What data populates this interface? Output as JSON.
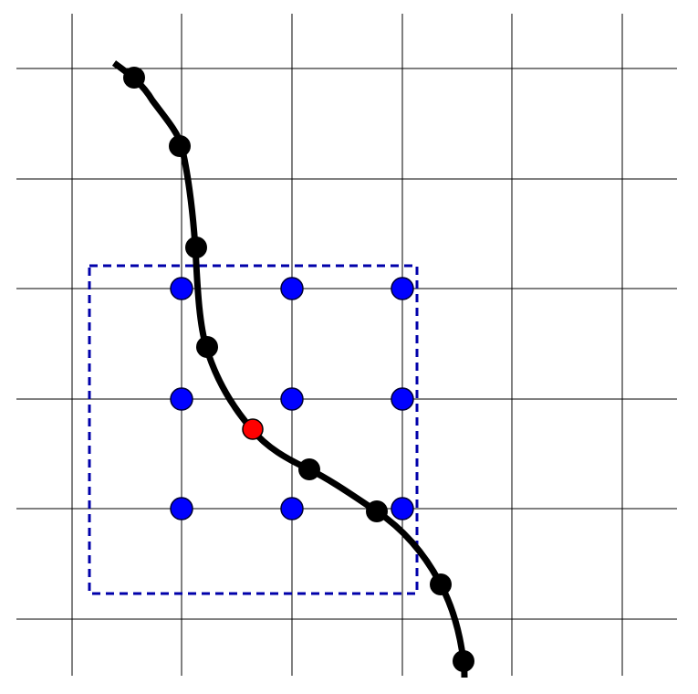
{
  "diagram": {
    "colors": {
      "background": "#ffffff",
      "grid_line": "#000000",
      "curve": "#000000",
      "curve_point": "#000000",
      "grid_node": "#0000ff",
      "highlight_point": "#ff0000",
      "window_border": "#0000aa"
    },
    "grid": {
      "columns": 6,
      "rows": 6
    },
    "curve_point_count": 9,
    "grid_node_count": 9,
    "highlighted_point_count": 1,
    "window_style": "dashed"
  }
}
